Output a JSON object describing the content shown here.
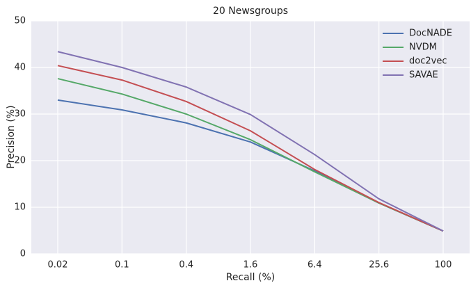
{
  "chart_data": {
    "type": "line",
    "title": "20 Newsgroups",
    "x_label": "Recall (%)",
    "y_label": "Precision (%)",
    "categories": [
      "0.02",
      "0.1",
      "0.4",
      "1.6",
      "6.4",
      "25.6",
      "100"
    ],
    "series": [
      {
        "name": "DocNADE",
        "color": "#4c72b0",
        "values": [
          33.0,
          30.9,
          28.1,
          24.0,
          17.8,
          10.9,
          4.9
        ]
      },
      {
        "name": "NVDM",
        "color": "#55a868",
        "values": [
          37.6,
          34.3,
          30.0,
          24.5,
          17.6,
          10.9,
          4.9
        ]
      },
      {
        "name": "doc2vec",
        "color": "#c44e52",
        "values": [
          40.4,
          37.3,
          32.7,
          26.4,
          18.1,
          11.0,
          4.9
        ]
      },
      {
        "name": "SAVAE",
        "color": "#8172b2",
        "values": [
          43.4,
          40.0,
          35.8,
          29.9,
          21.3,
          11.8,
          4.9
        ]
      }
    ],
    "ylim": [
      0,
      50
    ],
    "yticks": [
      0,
      10,
      20,
      30,
      40,
      50
    ],
    "grid": true,
    "legend": "upper right"
  }
}
